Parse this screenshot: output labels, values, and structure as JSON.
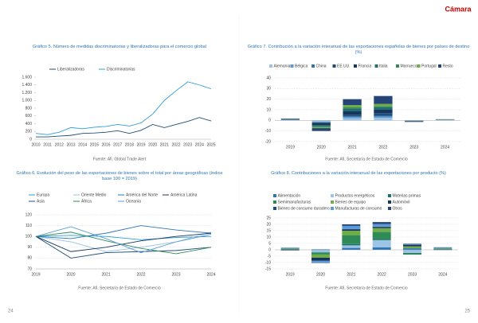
{
  "logo": "Cámara",
  "pages": [
    "24",
    "25"
  ],
  "chart_data": [
    {
      "type": "line",
      "title": "Gráfico 5. Número de medidas discriminatorias y liberalizadoras para el comercio global",
      "source": "Fuente: Afi, Global Trade Alert",
      "categories": [
        "2010",
        "2011",
        "2012",
        "2013",
        "2014",
        "2015",
        "2016",
        "2017",
        "2018",
        "2019",
        "2020",
        "2021",
        "2022",
        "2023",
        "2024",
        "2025"
      ],
      "series": [
        {
          "name": "Liberalizadoras",
          "color": "#1f4e79",
          "values": [
            60,
            60,
            80,
            100,
            150,
            160,
            180,
            220,
            150,
            230,
            380,
            300,
            380,
            460,
            560,
            470
          ]
        },
        {
          "name": "Discriminatorias",
          "color": "#2e9fd8",
          "values": [
            150,
            120,
            180,
            300,
            270,
            310,
            330,
            380,
            340,
            420,
            650,
            1000,
            1250,
            1480,
            1400,
            1300
          ]
        }
      ],
      "ylim": [
        0,
        1600
      ],
      "yticks": [
        0,
        200,
        400,
        600,
        800,
        {
          "value": 1000,
          "label": "1.000"
        },
        {
          "value": 1200,
          "label": "1.200"
        },
        {
          "value": 1400,
          "label": "1.400"
        },
        {
          "value": 1600,
          "label": "1.600"
        }
      ],
      "grid": false
    },
    {
      "type": "bar",
      "title": "Gráfico 7. Contribución a la variación interanual de las exportaciones españolas de bienes por países de destino (%)",
      "source": "Fuente: Afi, Secretaría de Estado de Comercio",
      "categories": [
        "2019",
        "2020",
        "2021",
        "2022",
        "2023",
        "2024"
      ],
      "series": [
        {
          "name": "Alemania",
          "color": "#9dc3e6",
          "values": [
            0.3,
            -1.2,
            2.0,
            2.5,
            -0.3,
            0.2
          ]
        },
        {
          "name": "Bélgica",
          "color": "#5b9bd5",
          "values": [
            0.1,
            -0.5,
            1.0,
            1.2,
            -0.1,
            0.1
          ]
        },
        {
          "name": "China",
          "color": "#2e75b6",
          "values": [
            0.2,
            -0.2,
            0.8,
            0.6,
            -0.2,
            0.1
          ]
        },
        {
          "name": "EE.UU.",
          "color": "#1f4e79",
          "values": [
            0.2,
            -0.6,
            1.5,
            2.5,
            -0.2,
            0.1
          ]
        },
        {
          "name": "Francia",
          "color": "#17365d",
          "values": [
            0.3,
            -2.0,
            3.5,
            3.5,
            -0.4,
            0.2
          ]
        },
        {
          "name": "Italia",
          "color": "#1f6f6f",
          "values": [
            0.1,
            -1.3,
            2.5,
            2.0,
            -0.2,
            0.1
          ]
        },
        {
          "name": "Marruecos",
          "color": "#2e8b57",
          "values": [
            0.1,
            -0.4,
            1.0,
            1.0,
            0.1,
            0.1
          ]
        },
        {
          "name": "Portugal",
          "color": "#70ad47",
          "values": [
            0.1,
            -1.1,
            2.2,
            2.2,
            -0.1,
            0.1
          ]
        },
        {
          "name": "Resto",
          "color": "#264478",
          "values": [
            0.4,
            -2.7,
            5.5,
            7.5,
            -0.1,
            0.1
          ]
        }
      ],
      "ylim": [
        -20,
        40
      ],
      "yticks": [
        -20,
        -10,
        0,
        10,
        20,
        30,
        40
      ],
      "grid": true
    },
    {
      "type": "line",
      "title": "Gráfico 6. Evolución del peso de las exportaciones de bienes sobre el total por áreas geográficas (índice base 100 = 2019)",
      "source": "Fuente: Afi, Secretaría de Estado de Comercio",
      "categories": [
        "2019",
        "2020",
        "2021",
        "2022",
        "2023",
        "2024"
      ],
      "series": [
        {
          "name": "Europa",
          "color": "#2e9fd8",
          "values": [
            100,
            101,
            100,
            97,
            99,
            100
          ]
        },
        {
          "name": "Oriente Medio",
          "color": "#9dc3e6",
          "values": [
            100,
            95,
            86,
            90,
            95,
            104
          ]
        },
        {
          "name": "América del Norte",
          "color": "#2e75b6",
          "values": [
            100,
            98,
            103,
            110,
            106,
            103
          ]
        },
        {
          "name": "América Latina",
          "color": "#17365d",
          "values": [
            100,
            86,
            90,
            96,
            100,
            103
          ]
        },
        {
          "name": "Asia",
          "color": "#1f4e79",
          "values": [
            100,
            80,
            85,
            86,
            87,
            90
          ]
        },
        {
          "name": "África",
          "color": "#2e8b57",
          "values": [
            100,
            104,
            96,
            89,
            84,
            90
          ]
        },
        {
          "name": "Oceanía",
          "color": "#5b9bd5",
          "values": [
            100,
            109,
            98,
            85,
            95,
            102
          ]
        }
      ],
      "ylim": [
        70,
        120
      ],
      "yticks": [
        70,
        80,
        90,
        100,
        110,
        120
      ],
      "grid": true
    },
    {
      "type": "bar",
      "title": "Gráfico 8. Contribuciones a la variación interanual de las exportaciones por producto (%)",
      "source": "Fuente: Afi, Secretaría de Estado de Comercio",
      "categories": [
        "2019",
        "2020",
        "2021",
        "2022",
        "2023",
        "2024"
      ],
      "series": [
        {
          "name": "Alimentación",
          "color": "#2e75b6",
          "values": [
            0.6,
            0.4,
            1.5,
            2.0,
            1.2,
            0.6
          ]
        },
        {
          "name": "Productos energéticos",
          "color": "#9dc3e6",
          "values": [
            -0.1,
            -2.0,
            2.0,
            5.5,
            -2.5,
            -0.4
          ]
        },
        {
          "name": "Materias primas",
          "color": "#1f6f6f",
          "values": [
            0.1,
            -0.2,
            1.0,
            0.5,
            -0.3,
            0.1
          ]
        },
        {
          "name": "Semimanufacturas",
          "color": "#2e8b57",
          "values": [
            0.3,
            -1.5,
            7.0,
            6.0,
            -1.0,
            0.2
          ]
        },
        {
          "name": "Bienes de equipo",
          "color": "#70ad47",
          "values": [
            0.4,
            -2.5,
            3.5,
            3.0,
            1.5,
            0.5
          ]
        },
        {
          "name": "Automóvil",
          "color": "#17365d",
          "values": [
            -0.4,
            -2.3,
            1.0,
            1.0,
            1.3,
            0.2
          ]
        },
        {
          "name": "Bienes de consumo duradero",
          "color": "#1f4e79",
          "values": [
            0.0,
            -0.2,
            0.3,
            0.2,
            0.0,
            0.0
          ]
        },
        {
          "name": "Manufacturas de consumo",
          "color": "#5b9bd5",
          "values": [
            0.3,
            -1.3,
            2.5,
            2.0,
            0.5,
            0.3
          ]
        },
        {
          "name": "Otros",
          "color": "#264478",
          "values": [
            0.1,
            -0.3,
            1.2,
            1.6,
            0.3,
            0.1
          ]
        }
      ],
      "ylim": [
        -15,
        25
      ],
      "yticks": [
        -15,
        -10,
        -5,
        0,
        5,
        10,
        15,
        20,
        25
      ],
      "grid": true
    }
  ]
}
